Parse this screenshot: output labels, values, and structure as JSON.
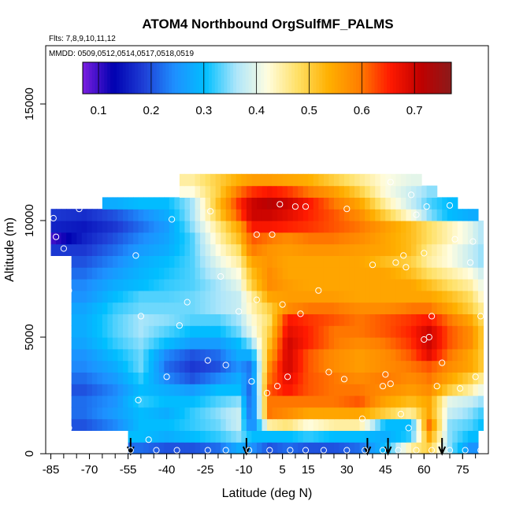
{
  "chart_data": {
    "type": "heatmap",
    "title": "ATOM4 Northbound OrgSulfMF_PALMS",
    "flights_note": "Flts: 7,8,9,10,11,12",
    "dates_note": "MMDD: 0509,0512,0514,0517,0518,0519",
    "xlabel": "Latitude (deg N)",
    "ylabel": "Altitude (m)",
    "xlim": [
      -87,
      85
    ],
    "ylim": [
      0,
      17500
    ],
    "x_tick_labels": [
      "-85",
      "-70",
      "-55",
      "-40",
      "-25",
      "-10",
      "5",
      "15",
      "30",
      "45",
      "60",
      "75"
    ],
    "x_ticks": [
      -85,
      -70,
      -55,
      -40,
      -25,
      -10,
      5,
      15,
      30,
      45,
      60,
      75
    ],
    "y_tick_labels": [
      "0",
      "5000",
      "10000",
      "15000"
    ],
    "y_ticks": [
      0,
      5000,
      10000,
      15000
    ],
    "colorbar": {
      "range": [
        0.07,
        0.77
      ],
      "tick_labels": [
        "0.1",
        "0.2",
        "0.3",
        "0.4",
        "0.5",
        "0.6",
        "0.7"
      ],
      "ticks": [
        0.1,
        0.2,
        0.3,
        0.4,
        0.5,
        0.6,
        0.7
      ],
      "colors": [
        "#7b1fe0",
        "#0000b0",
        "#1f3fd6",
        "#1e90ff",
        "#00bfff",
        "#aee6fa",
        "#fffde0",
        "#ffe066",
        "#ffb000",
        "#ff7f00",
        "#ff1a00",
        "#c00000",
        "#8b1a1a"
      ]
    },
    "altitude_bins": [
      250,
      750,
      1250,
      1750,
      2250,
      2750,
      3250,
      3750,
      4250,
      4750,
      5250,
      5750,
      6250,
      6750,
      7250,
      7750,
      8250,
      8750,
      9250,
      9750,
      10250,
      10750,
      11250,
      11750
    ],
    "control_latitudes": [
      -84,
      -72,
      -60,
      -50,
      -40,
      -30,
      -20,
      -12,
      -7,
      0,
      7,
      15,
      25,
      35,
      45,
      55,
      62,
      70,
      78,
      83
    ],
    "profiles": [
      {
        "alt": 250,
        "values": [
          null,
          null,
          null,
          0.22,
          0.2,
          0.2,
          0.22,
          0.28,
          0.25,
          0.2,
          0.22,
          0.2,
          0.2,
          0.22,
          0.3,
          0.45,
          0.5,
          0.35,
          0.25,
          null
        ]
      },
      {
        "alt": 750,
        "values": [
          null,
          null,
          null,
          0.3,
          0.28,
          0.3,
          0.32,
          0.35,
          0.3,
          0.3,
          0.3,
          0.32,
          0.3,
          0.3,
          0.28,
          0.32,
          0.55,
          0.35,
          0.3,
          null
        ]
      },
      {
        "alt": 1250,
        "values": [
          null,
          0.2,
          0.24,
          0.3,
          0.3,
          0.32,
          0.34,
          0.38,
          0.22,
          0.45,
          0.47,
          0.42,
          0.45,
          0.45,
          0.3,
          0.3,
          0.6,
          0.35,
          0.33,
          0.3
        ]
      },
      {
        "alt": 1750,
        "values": [
          null,
          0.22,
          0.26,
          0.3,
          0.28,
          0.32,
          0.35,
          0.38,
          0.2,
          0.6,
          0.58,
          0.55,
          0.55,
          0.55,
          0.5,
          0.45,
          0.55,
          0.38,
          0.35,
          0.32
        ]
      },
      {
        "alt": 2250,
        "values": [
          null,
          0.22,
          0.25,
          0.32,
          0.3,
          0.3,
          0.33,
          0.35,
          0.2,
          0.6,
          0.6,
          0.6,
          0.6,
          0.62,
          0.55,
          0.52,
          0.55,
          0.4,
          0.38,
          0.35
        ]
      },
      {
        "alt": 2750,
        "values": [
          null,
          0.2,
          0.24,
          0.3,
          0.28,
          0.26,
          0.3,
          0.3,
          0.2,
          0.62,
          0.66,
          0.62,
          0.6,
          0.6,
          0.58,
          0.56,
          0.58,
          0.5,
          0.45,
          0.4
        ]
      },
      {
        "alt": 3250,
        "values": [
          null,
          0.22,
          0.26,
          0.32,
          0.24,
          0.2,
          0.24,
          0.28,
          0.22,
          0.6,
          0.68,
          0.62,
          0.6,
          0.58,
          0.6,
          0.58,
          0.6,
          0.55,
          0.5,
          0.45
        ]
      },
      {
        "alt": 3750,
        "values": [
          null,
          0.24,
          0.28,
          0.34,
          0.22,
          0.18,
          0.2,
          0.25,
          0.22,
          0.58,
          0.7,
          0.62,
          0.58,
          0.56,
          0.58,
          0.6,
          0.62,
          0.58,
          0.55,
          0.5
        ]
      },
      {
        "alt": 4250,
        "values": [
          null,
          0.25,
          0.3,
          0.34,
          0.24,
          0.2,
          0.22,
          0.28,
          0.28,
          0.55,
          0.7,
          0.62,
          0.58,
          0.56,
          0.58,
          0.62,
          0.68,
          0.6,
          0.55,
          0.5
        ]
      },
      {
        "alt": 4750,
        "values": [
          null,
          0.27,
          0.32,
          0.35,
          0.3,
          0.26,
          0.26,
          0.3,
          0.35,
          0.52,
          0.7,
          0.65,
          0.6,
          0.58,
          0.6,
          0.64,
          0.7,
          0.62,
          0.58,
          0.5
        ]
      },
      {
        "alt": 5250,
        "values": [
          null,
          0.28,
          0.33,
          0.36,
          0.33,
          0.3,
          0.3,
          0.34,
          0.4,
          0.5,
          0.68,
          0.65,
          0.6,
          0.6,
          0.62,
          0.65,
          0.7,
          0.62,
          0.58,
          0.5
        ]
      },
      {
        "alt": 5750,
        "values": [
          null,
          0.28,
          0.33,
          0.36,
          0.35,
          0.33,
          0.33,
          0.36,
          0.42,
          0.48,
          0.66,
          0.64,
          0.62,
          0.6,
          0.62,
          0.64,
          0.66,
          0.6,
          0.55,
          0.48
        ]
      },
      {
        "alt": 6250,
        "values": [
          null,
          0.27,
          0.32,
          0.34,
          0.34,
          0.34,
          0.36,
          0.38,
          0.44,
          0.5,
          0.58,
          0.6,
          0.6,
          0.58,
          0.58,
          0.6,
          0.6,
          0.55,
          0.5,
          0.45
        ]
      },
      {
        "alt": 6750,
        "values": [
          null,
          0.25,
          0.3,
          0.33,
          0.33,
          0.34,
          0.36,
          0.38,
          0.45,
          0.55,
          0.56,
          0.56,
          0.56,
          0.55,
          0.55,
          0.55,
          0.55,
          0.52,
          0.48,
          0.42
        ]
      },
      {
        "alt": 7250,
        "values": [
          null,
          0.24,
          0.28,
          0.3,
          0.32,
          0.33,
          0.36,
          0.4,
          0.5,
          0.58,
          0.56,
          0.55,
          0.55,
          0.55,
          0.55,
          0.55,
          0.52,
          0.48,
          0.45,
          0.4
        ]
      },
      {
        "alt": 7750,
        "values": [
          null,
          0.22,
          0.26,
          0.29,
          0.31,
          0.33,
          0.38,
          0.42,
          0.52,
          0.58,
          0.55,
          0.55,
          0.55,
          0.55,
          0.55,
          0.52,
          0.48,
          0.45,
          0.42,
          0.38
        ]
      },
      {
        "alt": 8250,
        "values": [
          null,
          0.2,
          0.24,
          0.28,
          0.3,
          0.33,
          0.4,
          0.45,
          0.55,
          0.57,
          0.55,
          0.55,
          0.55,
          0.55,
          0.52,
          0.5,
          0.45,
          0.42,
          0.38,
          0.35
        ]
      },
      {
        "alt": 8750,
        "values": [
          0.18,
          0.18,
          0.22,
          0.26,
          0.28,
          0.33,
          0.42,
          0.48,
          0.6,
          0.57,
          0.56,
          0.57,
          0.57,
          0.56,
          0.55,
          0.52,
          0.46,
          0.42,
          0.38,
          0.35
        ]
      },
      {
        "alt": 9250,
        "values": [
          0.1,
          0.16,
          0.2,
          0.24,
          0.27,
          0.33,
          0.44,
          0.52,
          0.62,
          0.6,
          0.58,
          0.6,
          0.6,
          0.58,
          0.55,
          0.52,
          0.48,
          0.44,
          0.4,
          0.36
        ]
      },
      {
        "alt": 9750,
        "values": [
          0.16,
          0.15,
          0.18,
          0.22,
          0.26,
          0.35,
          0.46,
          0.55,
          0.66,
          0.66,
          0.65,
          0.64,
          0.62,
          0.6,
          0.56,
          0.52,
          0.48,
          0.44,
          0.4,
          0.36
        ]
      },
      {
        "alt": 10250,
        "values": [
          0.18,
          0.17,
          0.2,
          0.24,
          0.28,
          0.36,
          0.5,
          0.62,
          0.7,
          0.7,
          0.68,
          0.65,
          0.62,
          0.58,
          0.5,
          0.42,
          0.35,
          0.3,
          0.28,
          null
        ]
      },
      {
        "alt": 10750,
        "values": [
          null,
          null,
          0.28,
          0.3,
          0.3,
          0.36,
          0.52,
          0.64,
          0.7,
          0.72,
          0.7,
          0.66,
          0.6,
          0.55,
          0.45,
          0.38,
          0.33,
          0.3,
          null,
          null
        ]
      },
      {
        "alt": 11250,
        "values": [
          null,
          null,
          null,
          null,
          null,
          0.42,
          0.5,
          0.6,
          0.64,
          0.66,
          0.64,
          0.6,
          0.56,
          0.5,
          0.42,
          0.38,
          0.35,
          null,
          null,
          null
        ]
      },
      {
        "alt": 11750,
        "values": [
          null,
          null,
          null,
          null,
          null,
          0.45,
          0.5,
          0.54,
          0.56,
          0.56,
          0.55,
          0.54,
          0.5,
          0.46,
          0.42,
          0.4,
          null,
          null,
          null,
          null
        ]
      }
    ],
    "measurement_points": [
      {
        "lat": -84,
        "alt": 10100
      },
      {
        "lat": -83,
        "alt": 9300
      },
      {
        "lat": -80,
        "alt": 8800
      },
      {
        "lat": -78,
        "alt": 7000
      },
      {
        "lat": -81,
        "alt": 4700
      },
      {
        "lat": -79,
        "alt": 2800
      },
      {
        "lat": -80,
        "alt": 1300
      },
      {
        "lat": -74,
        "alt": 10500
      },
      {
        "lat": -52,
        "alt": 8500
      },
      {
        "lat": -50,
        "alt": 5900
      },
      {
        "lat": -51,
        "alt": 2300
      },
      {
        "lat": -38,
        "alt": 10050
      },
      {
        "lat": -35,
        "alt": 5500
      },
      {
        "lat": -40,
        "alt": 3300
      },
      {
        "lat": -32,
        "alt": 6500
      },
      {
        "lat": -23,
        "alt": 10400
      },
      {
        "lat": -19,
        "alt": 7600
      },
      {
        "lat": -24,
        "alt": 4000
      },
      {
        "lat": -17,
        "alt": 3800
      },
      {
        "lat": -12,
        "alt": 6100
      },
      {
        "lat": -5,
        "alt": 9400
      },
      {
        "lat": -7,
        "alt": 3100
      },
      {
        "lat": -5,
        "alt": 6600
      },
      {
        "lat": 1,
        "alt": 9400
      },
      {
        "lat": -1,
        "alt": 2600
      },
      {
        "lat": 4,
        "alt": 10700
      },
      {
        "lat": 5,
        "alt": 6400
      },
      {
        "lat": 3,
        "alt": 2900
      },
      {
        "lat": 7,
        "alt": 3300
      },
      {
        "lat": 10,
        "alt": 10600
      },
      {
        "lat": 14,
        "alt": 10600
      },
      {
        "lat": 12,
        "alt": 6000
      },
      {
        "lat": 19,
        "alt": 7000
      },
      {
        "lat": 23,
        "alt": 3500
      },
      {
        "lat": 30,
        "alt": 10500
      },
      {
        "lat": 29,
        "alt": 3200
      },
      {
        "lat": 40,
        "alt": 8100
      },
      {
        "lat": 45,
        "alt": 3400
      },
      {
        "lat": 47,
        "alt": 11650
      },
      {
        "lat": 49,
        "alt": 8200
      },
      {
        "lat": 52,
        "alt": 8500
      },
      {
        "lat": 53,
        "alt": 8000
      },
      {
        "lat": 55,
        "alt": 11100
      },
      {
        "lat": 57,
        "alt": 10250
      },
      {
        "lat": 60,
        "alt": 8600
      },
      {
        "lat": 61,
        "alt": 10600
      },
      {
        "lat": 63,
        "alt": 5900
      },
      {
        "lat": 62,
        "alt": 5000
      },
      {
        "lat": 60,
        "alt": 4900
      },
      {
        "lat": 65,
        "alt": 2900
      },
      {
        "lat": 67,
        "alt": 3900
      },
      {
        "lat": 70,
        "alt": 10650
      },
      {
        "lat": 72,
        "alt": 9200
      },
      {
        "lat": 76,
        "alt": 10700
      },
      {
        "lat": 79,
        "alt": 9100
      },
      {
        "lat": 78,
        "alt": 8200
      },
      {
        "lat": 82,
        "alt": 5900
      },
      {
        "lat": 80,
        "alt": 3300
      },
      {
        "lat": 74,
        "alt": 2800
      },
      {
        "lat": 47,
        "alt": 3000
      },
      {
        "lat": 44,
        "alt": 2900
      },
      {
        "lat": 51,
        "alt": 1700
      },
      {
        "lat": 54,
        "alt": 1100
      },
      {
        "lat": -54,
        "alt": 150
      },
      {
        "lat": -44,
        "alt": 150
      },
      {
        "lat": -36,
        "alt": 150
      },
      {
        "lat": -24,
        "alt": 150
      },
      {
        "lat": -17,
        "alt": 150
      },
      {
        "lat": -8,
        "alt": 150
      },
      {
        "lat": 0,
        "alt": 150
      },
      {
        "lat": 8,
        "alt": 150
      },
      {
        "lat": 14,
        "alt": 150
      },
      {
        "lat": 21,
        "alt": 150
      },
      {
        "lat": 30,
        "alt": 150
      },
      {
        "lat": 37,
        "alt": 150
      },
      {
        "lat": 44,
        "alt": 150
      },
      {
        "lat": 50,
        "alt": 150
      },
      {
        "lat": 57,
        "alt": 150
      },
      {
        "lat": 63,
        "alt": 150
      },
      {
        "lat": 70,
        "alt": 150
      },
      {
        "lat": 76,
        "alt": 150
      },
      {
        "lat": 82,
        "alt": 150
      },
      {
        "lat": -47,
        "alt": 600
      },
      {
        "lat": -78,
        "alt": 1100
      },
      {
        "lat": 36,
        "alt": 1500
      }
    ],
    "arrow_latitudes": [
      -54,
      -9,
      38,
      46,
      67
    ]
  }
}
